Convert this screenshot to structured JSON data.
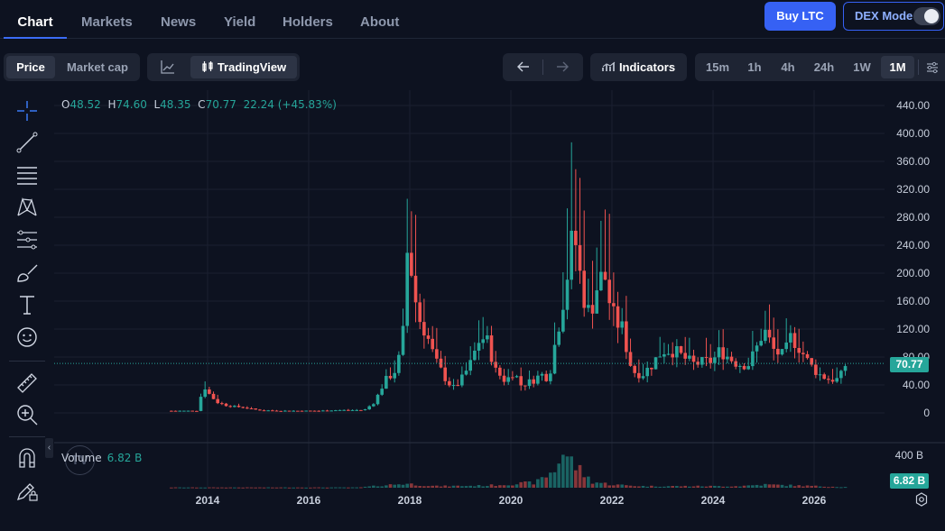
{
  "nav": {
    "tabs": [
      "Chart",
      "Markets",
      "News",
      "Yield",
      "Holders",
      "About"
    ],
    "active_tab": "Chart",
    "buy_button": "Buy LTC",
    "dex_mode_label": "DEX Mode",
    "dex_mode_on": false
  },
  "toolbar": {
    "price_toggle": [
      "Price",
      "Market cap"
    ],
    "active_price_toggle": "Price",
    "chart_mode_label": "TradingView",
    "indicators_label": "Indicators",
    "timeframes": [
      "15m",
      "1h",
      "4h",
      "24h",
      "1W",
      "1M"
    ],
    "active_timeframe": "1M"
  },
  "tools": [
    "crosshair-icon",
    "trendline-icon",
    "fib-retracement-icon",
    "pattern-icon",
    "forecast-icon",
    "brush-icon",
    "text-icon",
    "emoji-icon",
    "ruler-icon",
    "zoom-in-icon",
    "magnet-icon",
    "lock-drawing-icon"
  ],
  "legend": {
    "o_label": "O",
    "o": "48.52",
    "h_label": "H",
    "h": "74.60",
    "l_label": "L",
    "l": "48.35",
    "c_label": "C",
    "c": "70.77",
    "change": "22.24 (+45.83%)",
    "volume_label": "Volume",
    "volume_value": "6.82 B"
  },
  "colors": {
    "up": "#26a69a",
    "down": "#ef5350",
    "accent": "#3661f4",
    "background": "#0d1220"
  },
  "chart_data": {
    "type": "candlestick",
    "interval": "1M",
    "y_ticks": [
      "440.00",
      "400.00",
      "360.00",
      "320.00",
      "280.00",
      "240.00",
      "200.00",
      "160.00",
      "120.00",
      "80.00",
      "40.00",
      "0"
    ],
    "ylim": [
      0,
      440
    ],
    "x_ticks": [
      "2014",
      "2016",
      "2018",
      "2020",
      "2022",
      "2024",
      "2026"
    ],
    "last_price": "70.77",
    "volume_tick": "400 B",
    "volume_last": "6.82 B",
    "anchors": [
      [
        2013.2,
        3
      ],
      [
        2013.8,
        3
      ],
      [
        2013.92,
        40
      ],
      [
        2014.05,
        25
      ],
      [
        2014.2,
        15
      ],
      [
        2014.4,
        10
      ],
      [
        2014.7,
        8
      ],
      [
        2015.0,
        4
      ],
      [
        2015.4,
        3
      ],
      [
        2015.8,
        3
      ],
      [
        2016.2,
        3
      ],
      [
        2016.6,
        4
      ],
      [
        2017.1,
        4
      ],
      [
        2017.3,
        15
      ],
      [
        2017.5,
        45
      ],
      [
        2017.7,
        60
      ],
      [
        2017.85,
        90
      ],
      [
        2017.95,
        230
      ],
      [
        2018.05,
        200
      ],
      [
        2018.15,
        140
      ],
      [
        2018.3,
        120
      ],
      [
        2018.5,
        75
      ],
      [
        2018.7,
        50
      ],
      [
        2018.85,
        35
      ],
      [
        2019.0,
        45
      ],
      [
        2019.2,
        70
      ],
      [
        2019.4,
        110
      ],
      [
        2019.55,
        100
      ],
      [
        2019.7,
        60
      ],
      [
        2019.9,
        45
      ],
      [
        2020.05,
        60
      ],
      [
        2020.2,
        40
      ],
      [
        2020.4,
        45
      ],
      [
        2020.6,
        55
      ],
      [
        2020.75,
        50
      ],
      [
        2020.9,
        110
      ],
      [
        2021.05,
        170
      ],
      [
        2021.25,
        260
      ],
      [
        2021.4,
        180
      ],
      [
        2021.55,
        140
      ],
      [
        2021.7,
        180
      ],
      [
        2021.85,
        200
      ],
      [
        2022.0,
        140
      ],
      [
        2022.2,
        120
      ],
      [
        2022.4,
        60
      ],
      [
        2022.6,
        55
      ],
      [
        2022.8,
        70
      ],
      [
        2023.0,
        90
      ],
      [
        2023.2,
        90
      ],
      [
        2023.4,
        80
      ],
      [
        2023.6,
        70
      ],
      [
        2023.8,
        72
      ],
      [
        2024.0,
        75
      ],
      [
        2024.15,
        90
      ],
      [
        2024.3,
        80
      ],
      [
        2024.5,
        70
      ],
      [
        2024.7,
        70
      ],
      [
        2024.85,
        90
      ],
      [
        2025.0,
        120
      ],
      [
        2025.2,
        90
      ],
      [
        2025.4,
        80
      ],
      [
        2025.55,
        110
      ],
      [
        2025.7,
        95
      ],
      [
        2025.9,
        70
      ],
      [
        2026.1,
        55
      ],
      [
        2026.3,
        48
      ],
      [
        2026.5,
        48
      ],
      [
        2026.63,
        70.77
      ]
    ],
    "volume_anchors": [
      [
        2013.2,
        3
      ],
      [
        2017.0,
        3
      ],
      [
        2017.9,
        40
      ],
      [
        2018.5,
        15
      ],
      [
        2019.5,
        20
      ],
      [
        2020.5,
        50
      ],
      [
        2020.9,
        180
      ],
      [
        2021.0,
        360
      ],
      [
        2021.3,
        200
      ],
      [
        2021.6,
        60
      ],
      [
        2022.0,
        30
      ],
      [
        2022.6,
        15
      ],
      [
        2024.5,
        15
      ],
      [
        2025.0,
        30
      ],
      [
        2026.63,
        6.82
      ]
    ]
  }
}
